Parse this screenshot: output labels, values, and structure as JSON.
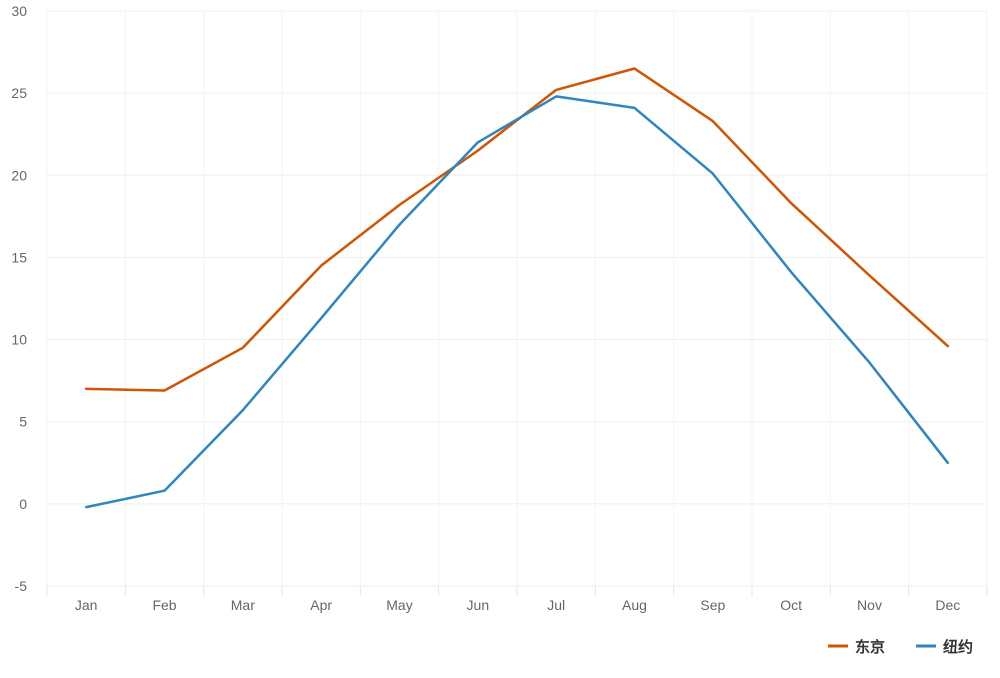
{
  "chart_data": {
    "type": "line",
    "title": "",
    "xlabel": "",
    "ylabel": "",
    "categories": [
      "Jan",
      "Feb",
      "Mar",
      "Apr",
      "May",
      "Jun",
      "Jul",
      "Aug",
      "Sep",
      "Oct",
      "Nov",
      "Dec"
    ],
    "ylim": [
      -5,
      30
    ],
    "yticks": [
      -5,
      0,
      5,
      10,
      15,
      20,
      25,
      30
    ],
    "grid": true,
    "legend_position": "bottom-right",
    "series": [
      {
        "name": "东京",
        "color": "#d35400",
        "values": [
          7.0,
          6.9,
          9.5,
          14.5,
          18.2,
          21.5,
          25.2,
          26.5,
          23.3,
          18.3,
          13.9,
          9.6
        ]
      },
      {
        "name": "纽约",
        "color": "#2e86c1",
        "values": [
          -0.2,
          0.8,
          5.7,
          11.3,
          17.0,
          22.0,
          24.8,
          24.1,
          20.1,
          14.1,
          8.6,
          2.5
        ]
      }
    ]
  }
}
